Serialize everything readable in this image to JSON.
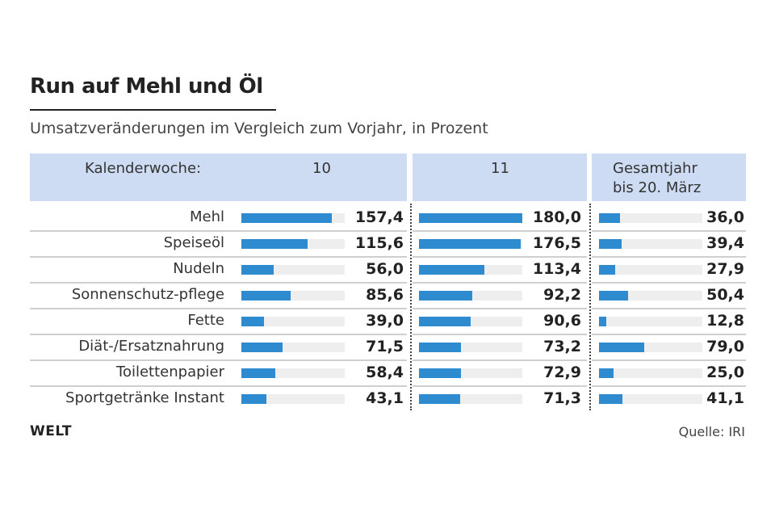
{
  "chart_data": {
    "type": "bar",
    "title": "Run auf Mehl und Öl",
    "subtitle": "Umsatzveränderungen im Vergleich zum Vorjahr, in Prozent",
    "header_label": "Kalenderwoche:",
    "categories": [
      "Mehl",
      "Speiseöl",
      "Nudeln",
      "Sonnenschutz-pflege",
      "Fette",
      "Diät-/Ersatznahrung",
      "Toilettenpapier",
      "Sportgetränke Instant"
    ],
    "series": [
      {
        "name": "10",
        "values": [
          157.4,
          115.6,
          56.0,
          85.6,
          39.0,
          71.5,
          58.4,
          43.1
        ],
        "labels": [
          "157,4",
          "115,6",
          "56,0",
          "85,6",
          "39,0",
          "71,5",
          "58,4",
          "43,1"
        ]
      },
      {
        "name": "11",
        "values": [
          180.0,
          176.5,
          113.4,
          92.2,
          90.6,
          73.2,
          72.9,
          71.3
        ],
        "labels": [
          "180,0",
          "176,5",
          "113,4",
          "92,2",
          "90,6",
          "73,2",
          "72,9",
          "71,3"
        ]
      },
      {
        "name": "Gesamtjahr bis 20. März",
        "name_lines": [
          "Gesamtjahr",
          "bis 20. März"
        ],
        "values": [
          36.0,
          39.4,
          27.9,
          50.4,
          12.8,
          79.0,
          25.0,
          41.1
        ],
        "labels": [
          "36,0",
          "39,4",
          "27,9",
          "50,4",
          "12,8",
          "79,0",
          "25,0",
          "41,1"
        ]
      }
    ],
    "xlim": [
      0,
      180
    ],
    "orientation": "horizontal",
    "colors": {
      "bar": "#2e8bcf",
      "track": "#eeeeee",
      "header": "#cddcf2"
    }
  },
  "footer": {
    "logo": "WELT",
    "source": "Quelle: IRI"
  }
}
